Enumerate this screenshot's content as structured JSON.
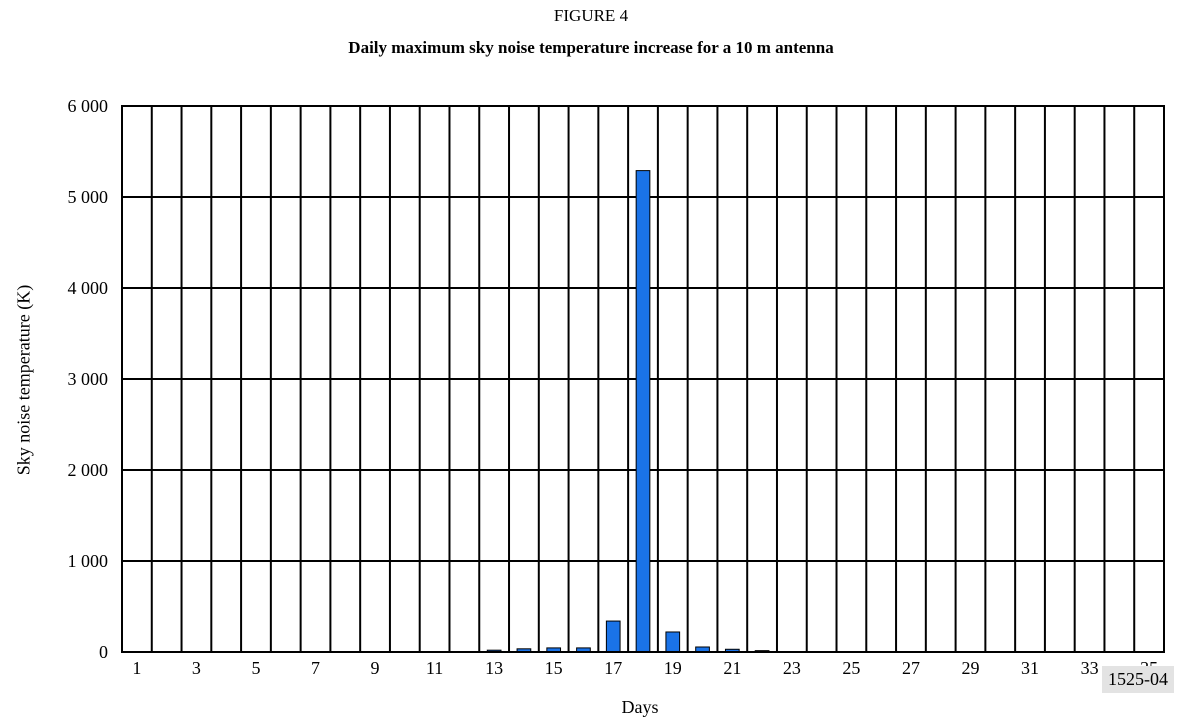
{
  "figure_label": "FIGURE 4",
  "figure_id": "1525-04",
  "chart_data": {
    "type": "bar",
    "title": "Daily maximum sky noise temperature increase for a 10 m antenna",
    "xlabel": "Days",
    "ylabel": "Sky noise temperature (K)",
    "ylim": [
      0,
      6000
    ],
    "yticks": [
      "0",
      "1 000",
      "2 000",
      "3 000",
      "4 000",
      "5 000",
      "6 000"
    ],
    "xtick_labels": [
      "1",
      "3",
      "5",
      "7",
      "9",
      "11",
      "13",
      "15",
      "17",
      "19",
      "21",
      "23",
      "25",
      "27",
      "29",
      "31",
      "33",
      "35"
    ],
    "grid": true,
    "bar_color": "#1a73e8",
    "categories": [
      1,
      2,
      3,
      4,
      5,
      6,
      7,
      8,
      9,
      10,
      11,
      12,
      13,
      14,
      15,
      16,
      17,
      18,
      19,
      20,
      21,
      22,
      23,
      24,
      25,
      26,
      27,
      28,
      29,
      30,
      31,
      32,
      33,
      34,
      35
    ],
    "values": [
      0,
      0,
      0,
      0,
      0,
      0,
      0,
      0,
      0,
      0,
      0,
      0,
      20,
      35,
      45,
      45,
      340,
      5290,
      220,
      55,
      30,
      15,
      0,
      0,
      0,
      0,
      0,
      0,
      0,
      0,
      0,
      0,
      0,
      0,
      0
    ]
  }
}
